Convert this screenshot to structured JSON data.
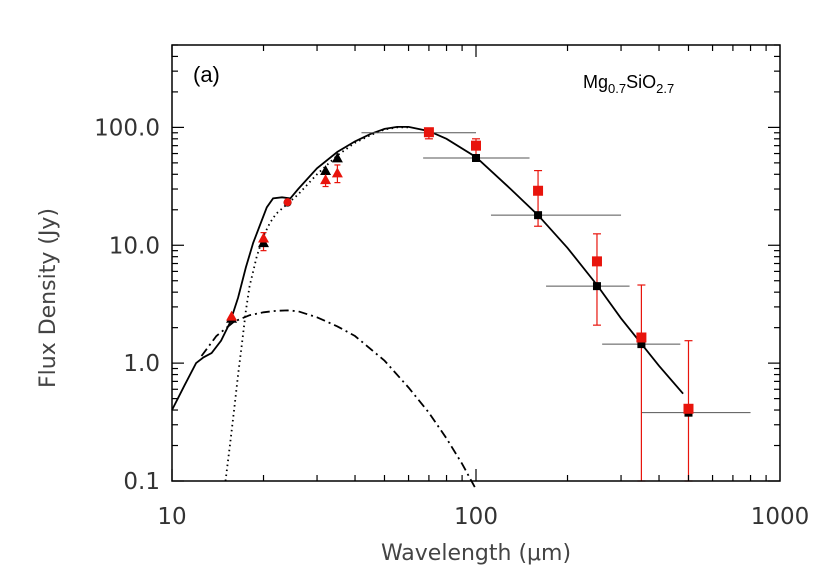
{
  "chart_data": {
    "type": "scatter",
    "panel_label": "(a)",
    "annotation": {
      "base": "Mg",
      "sub1": "0.7",
      "mid": "SiO",
      "sub2": "2.7"
    },
    "xlabel": "Wavelength (μm)",
    "ylabel": "Flux Density (Jy)",
    "xscale": "log",
    "yscale": "log",
    "xlim": [
      10,
      1000
    ],
    "ylim": [
      0.1,
      500
    ],
    "x_ticks": [
      {
        "value": 10,
        "label": "10"
      },
      {
        "value": 100,
        "label": "100"
      },
      {
        "value": 1000,
        "label": "1000"
      }
    ],
    "y_ticks": [
      {
        "value": 0.1,
        "label": "0.1"
      },
      {
        "value": 1,
        "label": "1.0"
      },
      {
        "value": 10,
        "label": "10.0"
      },
      {
        "value": 100,
        "label": "100.0"
      }
    ],
    "grid": false,
    "curves": [
      {
        "style": "solid",
        "points": [
          [
            10,
            0.4
          ],
          [
            11,
            0.65
          ],
          [
            12,
            1.0
          ],
          [
            12.7,
            1.12
          ],
          [
            13.5,
            1.22
          ],
          [
            14.5,
            1.55
          ],
          [
            15.5,
            2.2
          ],
          [
            16.5,
            3.6
          ],
          [
            17.5,
            6.5
          ],
          [
            18.5,
            10.5
          ],
          [
            19.5,
            15
          ],
          [
            20.5,
            21
          ],
          [
            21.5,
            25
          ],
          [
            23,
            25.5
          ],
          [
            24.5,
            25
          ],
          [
            26,
            30
          ],
          [
            30,
            45
          ],
          [
            35,
            62
          ],
          [
            40,
            76
          ],
          [
            45,
            88
          ],
          [
            50,
            97
          ],
          [
            55,
            101
          ],
          [
            60,
            101
          ],
          [
            70,
            93
          ],
          [
            80,
            80
          ],
          [
            100,
            56
          ],
          [
            130,
            30
          ],
          [
            160,
            18
          ],
          [
            200,
            9.5
          ],
          [
            250,
            4.6
          ],
          [
            300,
            2.4
          ],
          [
            400,
            0.95
          ],
          [
            480,
            0.55
          ]
        ]
      },
      {
        "style": "dotted",
        "points": [
          [
            15,
            0.1
          ],
          [
            15.5,
            0.2
          ],
          [
            16,
            0.4
          ],
          [
            16.5,
            0.8
          ],
          [
            17,
            1.5
          ],
          [
            17.5,
            2.8
          ],
          [
            18,
            4.5
          ],
          [
            19,
            8
          ],
          [
            20,
            12
          ],
          [
            21,
            15.5
          ],
          [
            22,
            18.5
          ],
          [
            24,
            22.5
          ],
          [
            26,
            27
          ],
          [
            30,
            40
          ],
          [
            35,
            58
          ],
          [
            40,
            74
          ],
          [
            45,
            86
          ],
          [
            50,
            96
          ],
          [
            55,
            100
          ],
          [
            60,
            100
          ]
        ]
      },
      {
        "style": "dashdot",
        "points": [
          [
            12.5,
            1.15
          ],
          [
            14,
            1.7
          ],
          [
            16,
            2.25
          ],
          [
            18,
            2.55
          ],
          [
            20,
            2.7
          ],
          [
            22,
            2.78
          ],
          [
            24,
            2.8
          ],
          [
            26,
            2.75
          ],
          [
            30,
            2.45
          ],
          [
            35,
            2.05
          ],
          [
            40,
            1.7
          ],
          [
            50,
            1.05
          ],
          [
            60,
            0.62
          ],
          [
            70,
            0.38
          ],
          [
            80,
            0.23
          ],
          [
            90,
            0.14
          ],
          [
            100,
            0.085
          ]
        ]
      }
    ],
    "series": [
      {
        "marker": "triangle",
        "color": "#000000",
        "points": [
          [
            15.7,
            2.4
          ],
          [
            20,
            10.5
          ],
          [
            32,
            43
          ],
          [
            35,
            55
          ]
        ]
      },
      {
        "marker": "triangle",
        "color": "#e8140c",
        "points": [
          [
            15.7,
            2.5
          ],
          [
            20,
            11.5
          ],
          [
            32,
            36
          ],
          [
            35,
            41
          ]
        ],
        "yerr_low": [
          null,
          [
            9,
            12.8
          ],
          [
            31.5,
            42
          ],
          [
            34,
            48
          ]
        ]
      },
      {
        "marker": "circle",
        "color": "#000000",
        "points": [
          [
            24,
            23
          ]
        ]
      },
      {
        "marker": "circle",
        "color": "#e8140c",
        "points": [
          [
            24,
            23.2
          ]
        ]
      },
      {
        "marker": "square",
        "color": "#000000",
        "points": [
          [
            70,
            90
          ],
          [
            100,
            55
          ],
          [
            160,
            18
          ],
          [
            250,
            4.5
          ],
          [
            350,
            1.45
          ],
          [
            500,
            0.38
          ]
        ],
        "xerr": [
          [
            42,
            100
          ],
          [
            67,
            150
          ],
          [
            112,
            300
          ],
          [
            170,
            320
          ],
          [
            260,
            470
          ],
          [
            350,
            800
          ]
        ]
      },
      {
        "marker": "square",
        "color": "#e8140c",
        "points": [
          [
            70,
            91
          ],
          [
            100,
            70
          ],
          [
            160,
            29
          ],
          [
            250,
            7.3
          ],
          [
            350,
            1.65
          ],
          [
            500,
            0.41
          ]
        ],
        "yerr": [
          [
            80,
            98
          ],
          [
            58,
            80
          ],
          [
            14.5,
            43
          ],
          [
            2.1,
            12.5
          ],
          [
            0.1,
            4.6
          ],
          [
            0.1,
            1.55
          ]
        ]
      }
    ]
  }
}
